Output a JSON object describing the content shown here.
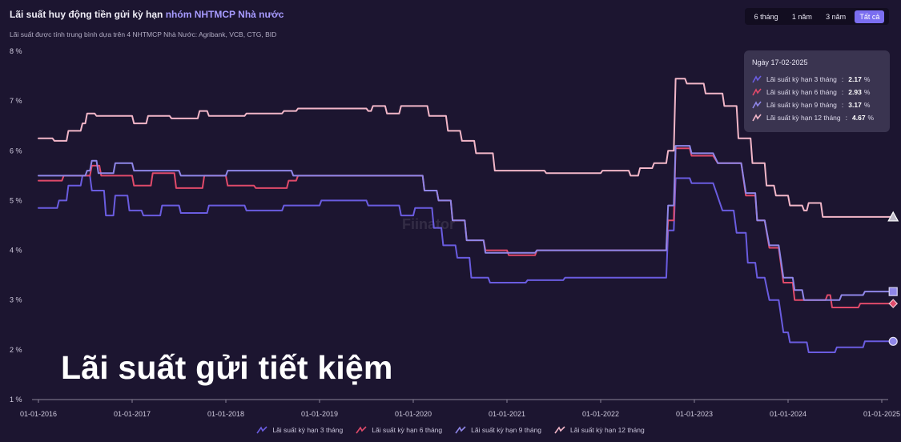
{
  "header": {
    "title_main": "Lãi suất huy động tiền gửi kỳ hạn ",
    "title_highlight": "nhóm NHTMCP Nhà nước",
    "subtitle": "Lãi suất được tính trung bình dựa trên 4 NHTMCP Nhà Nước: Agribank, VCB, CTG, BID"
  },
  "range_tabs": [
    {
      "label": "6 tháng",
      "active": false
    },
    {
      "label": "1 năm",
      "active": false
    },
    {
      "label": "3 năm",
      "active": false
    },
    {
      "label": "Tất cả",
      "active": true
    }
  ],
  "watermark": "Fiinator",
  "overlay_caption": "Lãi suất gửi tiết kiệm",
  "tooltip": {
    "date": "Ngày 17-02-2025",
    "unit": "%",
    "rows": [
      {
        "label": "Lãi suất kỳ hạn 3 tháng",
        "value": "2.17",
        "color": "#6a5ce0"
      },
      {
        "label": "Lãi suất kỳ hạn 6 tháng",
        "value": "2.93",
        "color": "#e04a6a"
      },
      {
        "label": "Lãi suất kỳ hạn 9 tháng",
        "value": "3.17",
        "color": "#8f86e8"
      },
      {
        "label": "Lãi suất kỳ hạn 12 tháng",
        "value": "4.67",
        "color": "#f2b6c8"
      }
    ]
  },
  "chart_data": {
    "type": "line",
    "title": "Lãi suất huy động tiền gửi kỳ hạn nhóm NHTMCP Nhà nước",
    "y_unit": "%",
    "ylim": [
      1,
      8
    ],
    "y_ticks": [
      "8 %",
      "7 %",
      "6 %",
      "5 %",
      "4 %",
      "3 %",
      "2 %",
      "1 %"
    ],
    "y_tick_values": [
      8,
      7,
      6,
      5,
      4,
      3,
      2,
      1
    ],
    "x_ticks": [
      "01-01-2016",
      "01-01-2017",
      "01-01-2018",
      "01-01-2019",
      "01-01-2020",
      "01-01-2021",
      "01-01-2022",
      "01-01-2023",
      "01-01-2024",
      "01-01-2025"
    ],
    "x_tick_values": [
      2016,
      2017,
      2018,
      2019,
      2020,
      2021,
      2022,
      2023,
      2024,
      2025
    ],
    "xlim": [
      2016,
      2025.13
    ],
    "grid": false,
    "legend_position": "bottom-center",
    "series": [
      {
        "name": "Lãi suất kỳ hạn 3 tháng",
        "color": "#6a5ce0",
        "points": [
          [
            2016,
            4.85
          ],
          [
            2016.2,
            4.85
          ],
          [
            2016.22,
            5.0
          ],
          [
            2016.3,
            5.0
          ],
          [
            2016.32,
            5.3
          ],
          [
            2016.45,
            5.3
          ],
          [
            2016.47,
            5.5
          ],
          [
            2016.55,
            5.5
          ],
          [
            2016.57,
            5.2
          ],
          [
            2016.7,
            5.2
          ],
          [
            2016.72,
            4.7
          ],
          [
            2016.8,
            4.7
          ],
          [
            2016.82,
            5.1
          ],
          [
            2016.95,
            5.1
          ],
          [
            2016.97,
            4.8
          ],
          [
            2017.1,
            4.8
          ],
          [
            2017.12,
            4.7
          ],
          [
            2017.3,
            4.7
          ],
          [
            2017.32,
            4.9
          ],
          [
            2017.5,
            4.9
          ],
          [
            2017.52,
            4.75
          ],
          [
            2017.8,
            4.75
          ],
          [
            2017.82,
            4.9
          ],
          [
            2018.2,
            4.9
          ],
          [
            2018.22,
            4.8
          ],
          [
            2018.6,
            4.8
          ],
          [
            2018.62,
            4.9
          ],
          [
            2019.0,
            4.9
          ],
          [
            2019.02,
            5.0
          ],
          [
            2019.5,
            5.0
          ],
          [
            2019.52,
            4.9
          ],
          [
            2019.85,
            4.9
          ],
          [
            2019.87,
            4.7
          ],
          [
            2020.0,
            4.7
          ],
          [
            2020.02,
            4.85
          ],
          [
            2020.2,
            4.85
          ],
          [
            2020.22,
            4.45
          ],
          [
            2020.3,
            4.45
          ],
          [
            2020.32,
            4.1
          ],
          [
            2020.45,
            4.1
          ],
          [
            2020.47,
            3.85
          ],
          [
            2020.6,
            3.85
          ],
          [
            2020.62,
            3.45
          ],
          [
            2020.8,
            3.45
          ],
          [
            2020.82,
            3.35
          ],
          [
            2021.2,
            3.35
          ],
          [
            2021.22,
            3.4
          ],
          [
            2021.6,
            3.4
          ],
          [
            2021.62,
            3.45
          ],
          [
            2022.7,
            3.45
          ],
          [
            2022.72,
            4.4
          ],
          [
            2022.78,
            4.4
          ],
          [
            2022.8,
            5.45
          ],
          [
            2022.95,
            5.45
          ],
          [
            2022.97,
            5.35
          ],
          [
            2023.2,
            5.35
          ],
          [
            2023.3,
            4.8
          ],
          [
            2023.42,
            4.8
          ],
          [
            2023.45,
            4.35
          ],
          [
            2023.55,
            4.35
          ],
          [
            2023.57,
            3.75
          ],
          [
            2023.65,
            3.75
          ],
          [
            2023.67,
            3.45
          ],
          [
            2023.75,
            3.45
          ],
          [
            2023.8,
            3.0
          ],
          [
            2023.9,
            3.0
          ],
          [
            2023.95,
            2.35
          ],
          [
            2024.0,
            2.35
          ],
          [
            2024.02,
            2.15
          ],
          [
            2024.2,
            2.15
          ],
          [
            2024.22,
            1.95
          ],
          [
            2024.5,
            1.95
          ],
          [
            2024.52,
            2.05
          ],
          [
            2024.8,
            2.05
          ],
          [
            2024.82,
            2.17
          ],
          [
            2025.13,
            2.17
          ]
        ]
      },
      {
        "name": "Lãi suất kỳ hạn 6 tháng",
        "color": "#e04a6a",
        "points": [
          [
            2016,
            5.4
          ],
          [
            2016.25,
            5.4
          ],
          [
            2016.27,
            5.5
          ],
          [
            2016.55,
            5.5
          ],
          [
            2016.57,
            5.7
          ],
          [
            2016.65,
            5.7
          ],
          [
            2016.67,
            5.5
          ],
          [
            2017.0,
            5.5
          ],
          [
            2017.02,
            5.3
          ],
          [
            2017.2,
            5.3
          ],
          [
            2017.22,
            5.55
          ],
          [
            2017.45,
            5.55
          ],
          [
            2017.47,
            5.25
          ],
          [
            2017.75,
            5.25
          ],
          [
            2017.77,
            5.5
          ],
          [
            2018.0,
            5.5
          ],
          [
            2018.02,
            5.3
          ],
          [
            2018.3,
            5.3
          ],
          [
            2018.32,
            5.25
          ],
          [
            2018.65,
            5.25
          ],
          [
            2018.67,
            5.4
          ],
          [
            2018.75,
            5.4
          ],
          [
            2018.77,
            5.5
          ],
          [
            2019.5,
            5.5
          ],
          [
            2019.52,
            5.5
          ],
          [
            2020.1,
            5.5
          ],
          [
            2020.12,
            5.2
          ],
          [
            2020.25,
            5.2
          ],
          [
            2020.27,
            5.0
          ],
          [
            2020.4,
            5.0
          ],
          [
            2020.42,
            4.6
          ],
          [
            2020.55,
            4.6
          ],
          [
            2020.57,
            4.2
          ],
          [
            2020.75,
            4.2
          ],
          [
            2020.77,
            4.0
          ],
          [
            2021.0,
            4.0
          ],
          [
            2021.02,
            3.9
          ],
          [
            2021.3,
            3.9
          ],
          [
            2021.32,
            4.0
          ],
          [
            2022.7,
            4.0
          ],
          [
            2022.72,
            4.6
          ],
          [
            2022.78,
            4.6
          ],
          [
            2022.8,
            6.05
          ],
          [
            2022.95,
            6.05
          ],
          [
            2022.97,
            5.9
          ],
          [
            2023.2,
            5.9
          ],
          [
            2023.25,
            5.75
          ],
          [
            2023.5,
            5.75
          ],
          [
            2023.55,
            5.1
          ],
          [
            2023.65,
            5.1
          ],
          [
            2023.67,
            4.6
          ],
          [
            2023.75,
            4.6
          ],
          [
            2023.8,
            4.05
          ],
          [
            2023.9,
            4.05
          ],
          [
            2023.95,
            3.35
          ],
          [
            2024.05,
            3.35
          ],
          [
            2024.07,
            3.0
          ],
          [
            2024.4,
            3.0
          ],
          [
            2024.42,
            3.1
          ],
          [
            2024.45,
            3.1
          ],
          [
            2024.47,
            2.85
          ],
          [
            2024.75,
            2.85
          ],
          [
            2024.77,
            2.93
          ],
          [
            2025.13,
            2.93
          ]
        ]
      },
      {
        "name": "Lãi suất kỳ hạn 9 tháng",
        "color": "#8f86e8",
        "points": [
          [
            2016,
            5.5
          ],
          [
            2016.5,
            5.5
          ],
          [
            2016.52,
            5.6
          ],
          [
            2016.55,
            5.6
          ],
          [
            2016.57,
            5.8
          ],
          [
            2016.62,
            5.8
          ],
          [
            2016.64,
            5.55
          ],
          [
            2016.8,
            5.55
          ],
          [
            2016.82,
            5.75
          ],
          [
            2017.0,
            5.75
          ],
          [
            2017.02,
            5.6
          ],
          [
            2017.5,
            5.6
          ],
          [
            2017.52,
            5.5
          ],
          [
            2018.0,
            5.5
          ],
          [
            2018.02,
            5.6
          ],
          [
            2018.7,
            5.6
          ],
          [
            2018.72,
            5.5
          ],
          [
            2020.1,
            5.5
          ],
          [
            2020.12,
            5.2
          ],
          [
            2020.25,
            5.2
          ],
          [
            2020.27,
            5.0
          ],
          [
            2020.4,
            5.0
          ],
          [
            2020.42,
            4.6
          ],
          [
            2020.55,
            4.6
          ],
          [
            2020.57,
            4.2
          ],
          [
            2020.75,
            4.2
          ],
          [
            2020.77,
            3.95
          ],
          [
            2021.3,
            3.95
          ],
          [
            2021.32,
            4.0
          ],
          [
            2022.7,
            4.0
          ],
          [
            2022.72,
            4.9
          ],
          [
            2022.78,
            4.9
          ],
          [
            2022.8,
            6.1
          ],
          [
            2022.95,
            6.1
          ],
          [
            2022.97,
            5.95
          ],
          [
            2023.2,
            5.95
          ],
          [
            2023.25,
            5.75
          ],
          [
            2023.5,
            5.75
          ],
          [
            2023.55,
            5.15
          ],
          [
            2023.65,
            5.15
          ],
          [
            2023.67,
            4.6
          ],
          [
            2023.75,
            4.6
          ],
          [
            2023.8,
            4.1
          ],
          [
            2023.9,
            4.1
          ],
          [
            2023.95,
            3.45
          ],
          [
            2024.05,
            3.45
          ],
          [
            2024.07,
            3.2
          ],
          [
            2024.15,
            3.2
          ],
          [
            2024.17,
            3.0
          ],
          [
            2024.55,
            3.0
          ],
          [
            2024.57,
            3.1
          ],
          [
            2024.8,
            3.1
          ],
          [
            2024.82,
            3.17
          ],
          [
            2025.13,
            3.17
          ]
        ]
      },
      {
        "name": "Lãi suất kỳ hạn 12 tháng",
        "color": "#f2b6c8",
        "points": [
          [
            2016,
            6.25
          ],
          [
            2016.15,
            6.25
          ],
          [
            2016.17,
            6.2
          ],
          [
            2016.3,
            6.2
          ],
          [
            2016.32,
            6.4
          ],
          [
            2016.45,
            6.4
          ],
          [
            2016.47,
            6.55
          ],
          [
            2016.5,
            6.55
          ],
          [
            2016.52,
            6.75
          ],
          [
            2016.6,
            6.75
          ],
          [
            2016.62,
            6.7
          ],
          [
            2017.0,
            6.7
          ],
          [
            2017.02,
            6.55
          ],
          [
            2017.15,
            6.55
          ],
          [
            2017.17,
            6.7
          ],
          [
            2017.4,
            6.7
          ],
          [
            2017.42,
            6.65
          ],
          [
            2017.7,
            6.65
          ],
          [
            2017.72,
            6.8
          ],
          [
            2017.8,
            6.8
          ],
          [
            2017.82,
            6.7
          ],
          [
            2018.2,
            6.7
          ],
          [
            2018.22,
            6.75
          ],
          [
            2018.6,
            6.75
          ],
          [
            2018.62,
            6.8
          ],
          [
            2018.75,
            6.8
          ],
          [
            2018.77,
            6.85
          ],
          [
            2019.5,
            6.85
          ],
          [
            2019.52,
            6.8
          ],
          [
            2019.55,
            6.8
          ],
          [
            2019.57,
            6.9
          ],
          [
            2019.7,
            6.9
          ],
          [
            2019.72,
            6.75
          ],
          [
            2019.85,
            6.75
          ],
          [
            2019.87,
            6.9
          ],
          [
            2020.15,
            6.9
          ],
          [
            2020.17,
            6.7
          ],
          [
            2020.35,
            6.7
          ],
          [
            2020.37,
            6.4
          ],
          [
            2020.5,
            6.4
          ],
          [
            2020.52,
            6.2
          ],
          [
            2020.65,
            6.2
          ],
          [
            2020.67,
            5.95
          ],
          [
            2020.85,
            5.95
          ],
          [
            2020.87,
            5.6
          ],
          [
            2021.4,
            5.6
          ],
          [
            2021.42,
            5.55
          ],
          [
            2022.0,
            5.55
          ],
          [
            2022.02,
            5.6
          ],
          [
            2022.3,
            5.6
          ],
          [
            2022.32,
            5.5
          ],
          [
            2022.4,
            5.5
          ],
          [
            2022.42,
            5.65
          ],
          [
            2022.55,
            5.65
          ],
          [
            2022.57,
            5.75
          ],
          [
            2022.7,
            5.75
          ],
          [
            2022.72,
            6.0
          ],
          [
            2022.78,
            6.0
          ],
          [
            2022.8,
            7.45
          ],
          [
            2022.9,
            7.45
          ],
          [
            2022.92,
            7.35
          ],
          [
            2023.1,
            7.35
          ],
          [
            2023.12,
            7.15
          ],
          [
            2023.3,
            7.15
          ],
          [
            2023.32,
            6.9
          ],
          [
            2023.45,
            6.9
          ],
          [
            2023.47,
            6.25
          ],
          [
            2023.6,
            6.25
          ],
          [
            2023.62,
            5.75
          ],
          [
            2023.75,
            5.75
          ],
          [
            2023.77,
            5.3
          ],
          [
            2023.85,
            5.3
          ],
          [
            2023.87,
            5.1
          ],
          [
            2024.0,
            5.1
          ],
          [
            2024.02,
            4.9
          ],
          [
            2024.15,
            4.9
          ],
          [
            2024.17,
            4.8
          ],
          [
            2024.2,
            4.8
          ],
          [
            2024.22,
            4.95
          ],
          [
            2024.35,
            4.95
          ],
          [
            2024.37,
            4.67
          ],
          [
            2025.13,
            4.67
          ]
        ]
      }
    ]
  }
}
